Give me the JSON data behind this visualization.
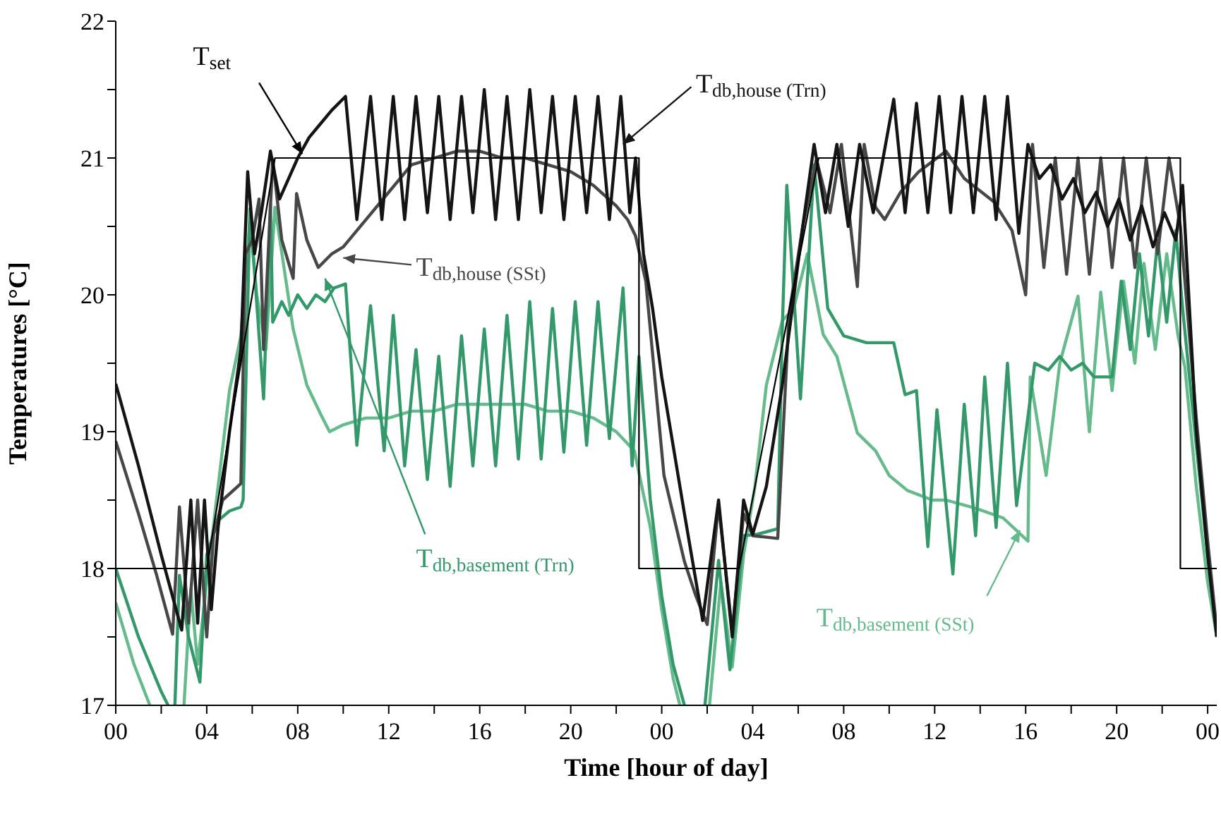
{
  "chart_data": {
    "type": "line",
    "xlabel": "Time [hour of day]",
    "ylabel": "Temperatures [°C]",
    "marker": "none",
    "xlim": [
      0,
      48.4
    ],
    "xticks": [
      {
        "value": 0,
        "label": "00"
      },
      {
        "value": 2,
        "label": null
      },
      {
        "value": 4,
        "label": "04"
      },
      {
        "value": 6,
        "label": null
      },
      {
        "value": 8,
        "label": "08"
      },
      {
        "value": 10,
        "label": null
      },
      {
        "value": 12,
        "label": "12"
      },
      {
        "value": 14,
        "label": null
      },
      {
        "value": 16,
        "label": "16"
      },
      {
        "value": 18,
        "label": null
      },
      {
        "value": 20,
        "label": "20"
      },
      {
        "value": 22,
        "label": null
      },
      {
        "value": 24,
        "label": "00"
      },
      {
        "value": 26,
        "label": null
      },
      {
        "value": 28,
        "label": "04"
      },
      {
        "value": 30,
        "label": null
      },
      {
        "value": 32,
        "label": "08"
      },
      {
        "value": 34,
        "label": null
      },
      {
        "value": 36,
        "label": "12"
      },
      {
        "value": 38,
        "label": null
      },
      {
        "value": 40,
        "label": "16"
      },
      {
        "value": 42,
        "label": null
      },
      {
        "value": 44,
        "label": "20"
      },
      {
        "value": 46,
        "label": null
      },
      {
        "value": 48,
        "label": "00"
      }
    ],
    "ylim": [
      17,
      22
    ],
    "yticks": [
      17,
      {
        "value": 17.5,
        "label": null
      },
      18,
      {
        "value": 18.5,
        "label": null
      },
      19,
      {
        "value": 19.5,
        "label": null
      },
      20,
      {
        "value": 20.5,
        "label": null
      },
      21,
      {
        "value": 21.5,
        "label": null
      },
      22
    ],
    "series": [
      {
        "name": "T$_{set}$",
        "color": "#000000",
        "x": [
          0,
          4,
          7,
          23,
          23,
          27.4,
          30.9,
          46.8,
          46.8,
          48.4
        ],
        "values": [
          18,
          18,
          21,
          21,
          18,
          18,
          21,
          21,
          18,
          18
        ]
      },
      {
        "name": "T$_{db,house (Trn)}$",
        "color": "#141414",
        "x": [
          0,
          1,
          2,
          2.9,
          3.3,
          3.6,
          3.9,
          4.2,
          4.5,
          5,
          5.5,
          5.8,
          6.1,
          6.4,
          6.8,
          7.2,
          7.6,
          8,
          8.5,
          9,
          9.5,
          10.1,
          10.6,
          11.2,
          11.7,
          12.2,
          12.7,
          13.2,
          13.7,
          14.2,
          14.7,
          15.2,
          15.7,
          16.2,
          16.7,
          17.2,
          17.7,
          18.2,
          18.7,
          19.2,
          19.7,
          20.2,
          20.7,
          21.2,
          21.7,
          22.2,
          22.6,
          22.85,
          23.2,
          23.6,
          24,
          24.5,
          25,
          25.8,
          26.5,
          27.1,
          27.6,
          28,
          28.6,
          29.3,
          29.7,
          30.2,
          30.7,
          31.2,
          31.7,
          32.2,
          32.7,
          33.3,
          34.2,
          34.7,
          35.2,
          35.7,
          36.2,
          36.7,
          37.2,
          37.7,
          38.2,
          38.7,
          39.2,
          39.7,
          40.1,
          40.6,
          41.1,
          41.6,
          42.1,
          42.6,
          43.1,
          43.6,
          44.1,
          44.6,
          45.1,
          45.6,
          46.1,
          46.6,
          46.9,
          47.5,
          48,
          48.4
        ],
        "values": [
          19.35,
          18.75,
          18.1,
          17.55,
          18.5,
          17.6,
          18.5,
          17.7,
          18.3,
          19.0,
          19.6,
          20.9,
          20.3,
          20.6,
          21.05,
          20.7,
          20.85,
          21.0,
          21.15,
          21.25,
          21.35,
          21.45,
          20.55,
          21.45,
          20.55,
          21.45,
          20.55,
          21.45,
          20.6,
          21.45,
          20.55,
          21.45,
          20.6,
          21.5,
          20.55,
          21.45,
          20.55,
          21.5,
          20.6,
          21.45,
          20.55,
          21.45,
          20.6,
          21.45,
          20.55,
          21.45,
          20.6,
          21.0,
          20.3,
          19.9,
          19.4,
          18.9,
          18.4,
          17.62,
          18.5,
          17.5,
          18.5,
          18.25,
          18.6,
          19.34,
          19.85,
          20.5,
          21.1,
          20.6,
          21.1,
          20.5,
          21.1,
          20.6,
          21.43,
          20.6,
          21.4,
          20.6,
          21.45,
          20.6,
          21.45,
          20.6,
          21.45,
          20.55,
          21.45,
          20.45,
          21.1,
          20.85,
          20.95,
          20.7,
          20.85,
          20.6,
          20.75,
          20.5,
          20.7,
          20.4,
          20.65,
          20.35,
          20.6,
          20.4,
          20.8,
          19.0,
          18.1,
          17.5
        ]
      },
      {
        "name": "T$_{db,house (SSt)}$",
        "color": "#474747",
        "x": [
          0,
          1,
          1.8,
          2.5,
          2.8,
          3.2,
          3.6,
          4.0,
          4.3,
          4.7,
          5.5,
          5.7,
          6.0,
          6.3,
          6.5,
          6.9,
          7.3,
          7.8,
          7.95,
          8.4,
          8.9,
          9.5,
          10,
          11,
          12,
          13,
          14,
          15,
          16,
          17,
          18,
          19,
          20,
          21,
          22,
          22.5,
          22.85,
          23.3,
          24.1,
          25,
          25.5,
          26,
          26.5,
          27.1,
          27.6,
          28,
          29.1,
          29.6,
          30.2,
          30.8,
          31.4,
          31.9,
          32.6,
          32.9,
          33.4,
          33.8,
          34.5,
          35.3,
          36.5,
          37.3,
          38.6,
          39.4,
          40.0,
          40.3,
          40.8,
          41.3,
          41.8,
          42.3,
          42.8,
          43.3,
          43.8,
          44.3,
          44.8,
          45.3,
          45.8,
          46.3,
          46.8,
          47.5,
          48,
          48.4
        ],
        "values": [
          18.93,
          18.4,
          17.95,
          17.52,
          18.45,
          17.6,
          18.5,
          17.5,
          18.25,
          18.5,
          18.62,
          20.3,
          20.4,
          20.7,
          19.6,
          20.99,
          20.4,
          20.12,
          20.74,
          20.4,
          20.2,
          20.3,
          20.35,
          20.55,
          20.75,
          20.95,
          21.0,
          21.05,
          21.05,
          21.0,
          21.0,
          20.95,
          20.9,
          20.8,
          20.65,
          20.55,
          20.43,
          20.1,
          18.68,
          18.05,
          17.8,
          17.59,
          18.47,
          17.54,
          18.4,
          18.24,
          18.22,
          19.86,
          20.5,
          20.99,
          20.6,
          21.1,
          20.06,
          21.1,
          20.64,
          20.55,
          20.75,
          20.9,
          21.05,
          20.85,
          20.68,
          20.47,
          20.0,
          21.1,
          20.2,
          21.0,
          20.15,
          21.0,
          20.15,
          21.0,
          20.2,
          21.0,
          20.2,
          21.0,
          20.3,
          21.0,
          20.5,
          19.1,
          18.2,
          17.55
        ]
      },
      {
        "name": "T$_{db,basement (Trn)}$",
        "color": "#34996a",
        "x": [
          0,
          1,
          2,
          2.3,
          2.45,
          2.6,
          2.8,
          3.2,
          3.7,
          4.0,
          4.5,
          5.0,
          5.5,
          5.6,
          5.9,
          6.5,
          6.8,
          6.9,
          7.3,
          7.6,
          8.0,
          8.4,
          8.8,
          9.2,
          9.6,
          10.1,
          10.6,
          11.2,
          11.8,
          12.2,
          12.7,
          13.2,
          13.7,
          14.2,
          14.7,
          15.2,
          15.7,
          16.2,
          16.7,
          17.2,
          17.7,
          18.2,
          18.7,
          19.2,
          19.7,
          20.2,
          20.7,
          21.2,
          21.7,
          22.3,
          22.7,
          23.0,
          23.5,
          24,
          24.5,
          25,
          25.5,
          25.9,
          26.5,
          27.0,
          27.6,
          28.2,
          29.1,
          29.3,
          29.5,
          30.1,
          30.7,
          31.3,
          32,
          33,
          34.2,
          34.7,
          35.2,
          35.7,
          36.1,
          36.8,
          37.3,
          37.8,
          38.2,
          38.7,
          39.2,
          39.6,
          40.4,
          41,
          41.5,
          42,
          42.5,
          43,
          43.8,
          44.2,
          44.6,
          45,
          45.4,
          45.8,
          46.2,
          46.6,
          46.9,
          47.5,
          48,
          48.4
        ],
        "values": [
          18.0,
          17.5,
          17.1,
          17.0,
          null,
          17.0,
          17.95,
          17.5,
          17.17,
          18.1,
          18.35,
          18.42,
          18.45,
          18.5,
          20.63,
          19.24,
          20.66,
          19.8,
          19.95,
          19.85,
          20.0,
          19.9,
          20.0,
          19.95,
          20.05,
          20.08,
          18.9,
          19.92,
          18.86,
          19.85,
          18.75,
          19.6,
          18.65,
          19.55,
          18.6,
          19.7,
          18.75,
          19.75,
          18.75,
          19.85,
          18.8,
          19.95,
          18.8,
          19.9,
          18.85,
          19.95,
          18.9,
          19.95,
          18.95,
          20.05,
          18.75,
          19.55,
          18.5,
          17.8,
          17.3,
          17.0,
          null,
          17.0,
          18.06,
          17.26,
          18.24,
          18.25,
          18.29,
          19.75,
          20.8,
          19.24,
          20.95,
          19.9,
          19.7,
          19.65,
          19.65,
          19.27,
          19.3,
          18.16,
          19.16,
          17.96,
          19.2,
          18.24,
          19.4,
          18.3,
          19.5,
          18.46,
          19.5,
          19.45,
          19.55,
          19.45,
          19.5,
          19.4,
          19.4,
          20.1,
          19.6,
          20.3,
          19.7,
          20.4,
          19.8,
          20.47,
          19.9,
          18.9,
          18.1,
          17.5
        ]
      },
      {
        "name": "T$_{db,basement (SSt)}$",
        "color": "#66bb8c",
        "x": [
          0,
          0.8,
          1.5,
          2.0,
          3.0,
          3.3,
          3.6,
          3.9,
          4.0,
          4.5,
          5,
          5.5,
          5.9,
          6.2,
          6.6,
          7.0,
          7.8,
          8.4,
          9.0,
          9.4,
          10,
          11,
          12,
          13,
          14,
          15,
          16,
          17,
          18,
          19,
          20,
          21,
          22,
          22.8,
          23.5,
          24,
          24.5,
          24.8,
          25.4,
          26.1,
          26.6,
          27.1,
          27.6,
          28.1,
          28.6,
          29.3,
          29.8,
          30.4,
          31.1,
          31.7,
          32.6,
          33.4,
          34,
          34.8,
          35.9,
          36.5,
          37.8,
          39,
          40.1,
          40.2,
          40.9,
          41.5,
          42.3,
          42.8,
          43.3,
          43.8,
          44.3,
          44.8,
          45.2,
          45.7,
          46.2,
          46.7,
          47,
          47.5,
          48,
          48.4
        ],
        "values": [
          17.75,
          17.3,
          17.0,
          null,
          17.0,
          17.85,
          17.3,
          17.75,
          17.9,
          18.6,
          19.3,
          19.7,
          20.55,
          20.0,
          19.6,
          20.64,
          19.75,
          19.34,
          19.13,
          19.0,
          19.05,
          19.1,
          19.1,
          19.15,
          19.15,
          19.2,
          19.2,
          19.2,
          19.2,
          19.15,
          19.15,
          19.1,
          19.0,
          18.86,
          18.3,
          17.7,
          17.2,
          17.0,
          null,
          17.0,
          17.9,
          17.28,
          18.1,
          18.6,
          19.34,
          19.81,
          19.9,
          20.3,
          19.71,
          19.55,
          18.99,
          18.86,
          18.68,
          18.57,
          18.5,
          18.5,
          18.44,
          18.37,
          18.2,
          19.4,
          18.68,
          19.5,
          19.99,
          19.0,
          20.02,
          19.3,
          20.1,
          19.5,
          20.23,
          19.6,
          20.3,
          19.7,
          19.47,
          18.6,
          17.9,
          17.5
        ]
      }
    ]
  }
}
